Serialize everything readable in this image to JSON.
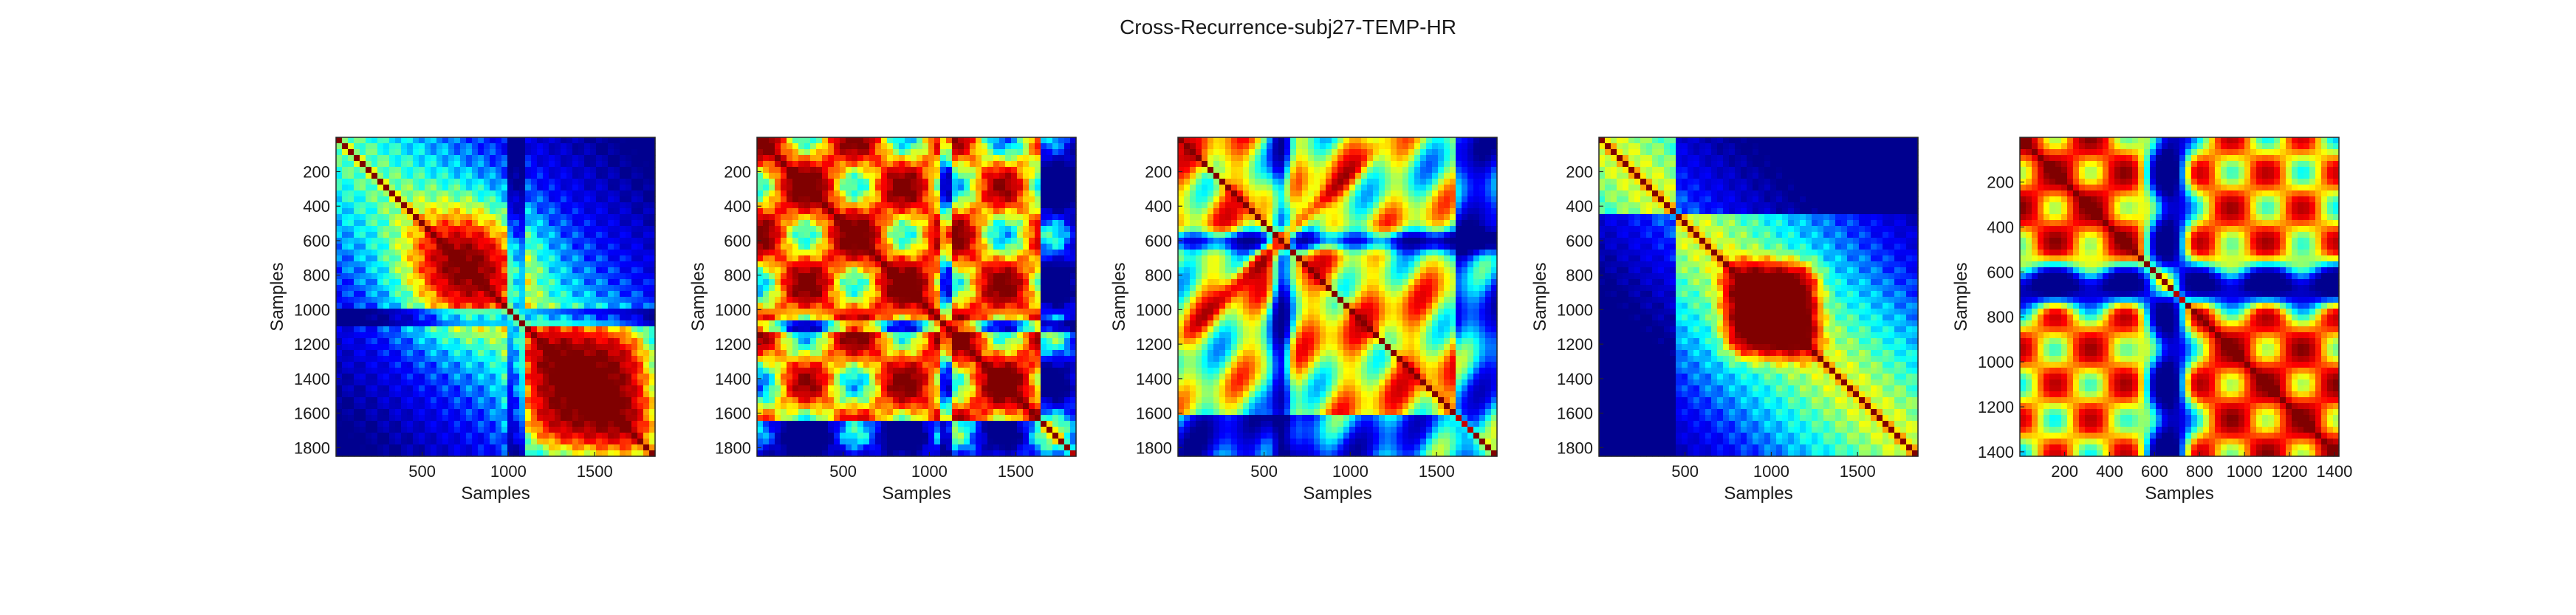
{
  "figure": {
    "title": "Cross-Recurrence-subj27-TEMP-HR"
  },
  "colormap": "jet",
  "colormap_stops": [
    "#00008f",
    "#0000ff",
    "#00ffff",
    "#ffff00",
    "#ff0000",
    "#800000"
  ],
  "chart_data": [
    {
      "type": "heatmap",
      "title": "",
      "xlabel": "Samples",
      "ylabel": "Samples",
      "size": 1850,
      "xlim": [
        1,
        1850
      ],
      "ylim": [
        1,
        1850
      ],
      "y_direction": "reverse",
      "xticks": [
        500,
        1000,
        1500
      ],
      "yticks": [
        200,
        400,
        600,
        800,
        1000,
        1200,
        1400,
        1600,
        1800
      ],
      "grid": false,
      "pattern": "blocks",
      "centers": [
        750,
        1450
      ]
    },
    {
      "type": "heatmap",
      "title": "",
      "xlabel": "Samples",
      "ylabel": "Samples",
      "size": 1850,
      "xlim": [
        1,
        1850
      ],
      "ylim": [
        1,
        1850
      ],
      "y_direction": "reverse",
      "xticks": [
        500,
        1000,
        1500
      ],
      "yticks": [
        200,
        400,
        600,
        800,
        1000,
        1200,
        1400,
        1600,
        1800
      ],
      "grid": false,
      "pattern": "checker",
      "centers": [
        400,
        900,
        1350
      ]
    },
    {
      "type": "heatmap",
      "title": "",
      "xlabel": "Samples",
      "ylabel": "Samples",
      "size": 1850,
      "xlim": [
        1,
        1850
      ],
      "ylim": [
        1,
        1850
      ],
      "y_direction": "reverse",
      "xticks": [
        500,
        1000,
        1500
      ],
      "yticks": [
        200,
        400,
        600,
        800,
        1000,
        1200,
        1400,
        1600,
        1800
      ],
      "grid": false,
      "pattern": "cross",
      "centers": [
        600
      ]
    },
    {
      "type": "heatmap",
      "title": "",
      "xlabel": "Samples",
      "ylabel": "Samples",
      "size": 1850,
      "xlim": [
        1,
        1850
      ],
      "ylim": [
        1,
        1850
      ],
      "y_direction": "reverse",
      "xticks": [
        500,
        1000,
        1500
      ],
      "yticks": [
        200,
        400,
        600,
        800,
        1000,
        1200,
        1400,
        1600,
        1800
      ],
      "grid": false,
      "pattern": "diagonal-block",
      "centers": [
        1000
      ]
    },
    {
      "type": "heatmap",
      "title": "",
      "xlabel": "Samples",
      "ylabel": "Samples",
      "size": 1420,
      "xlim": [
        1,
        1420
      ],
      "ylim": [
        1,
        1420
      ],
      "y_direction": "reverse",
      "xticks": [
        200,
        400,
        600,
        800,
        1000,
        1200,
        1400
      ],
      "yticks": [
        200,
        400,
        600,
        800,
        1000,
        1200,
        1400
      ],
      "grid": false,
      "pattern": "band",
      "centers": [
        660
      ]
    }
  ]
}
